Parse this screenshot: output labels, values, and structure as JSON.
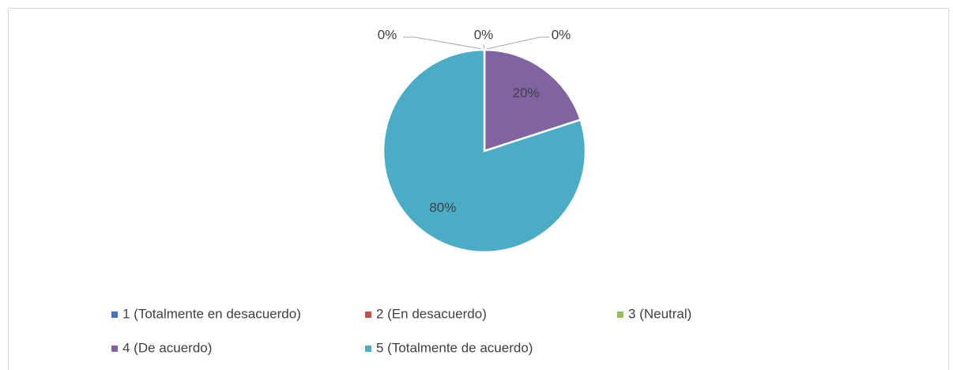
{
  "chart_data": {
    "type": "pie",
    "categories": [
      "1 (Totalmente en desacuerdo)",
      "2 (En desacuerdo)",
      "3 (Neutral)",
      "4 (De acuerdo)",
      "5 (Totalmente de acuerdo)"
    ],
    "values": [
      0,
      0,
      0,
      20,
      80
    ],
    "value_labels": [
      "0%",
      "0%",
      "0%",
      "20%",
      "80%"
    ],
    "colors": [
      "#4472c4",
      "#c0504d",
      "#9bbb59",
      "#8064a2",
      "#4bacc6"
    ],
    "legend": "bottom"
  }
}
